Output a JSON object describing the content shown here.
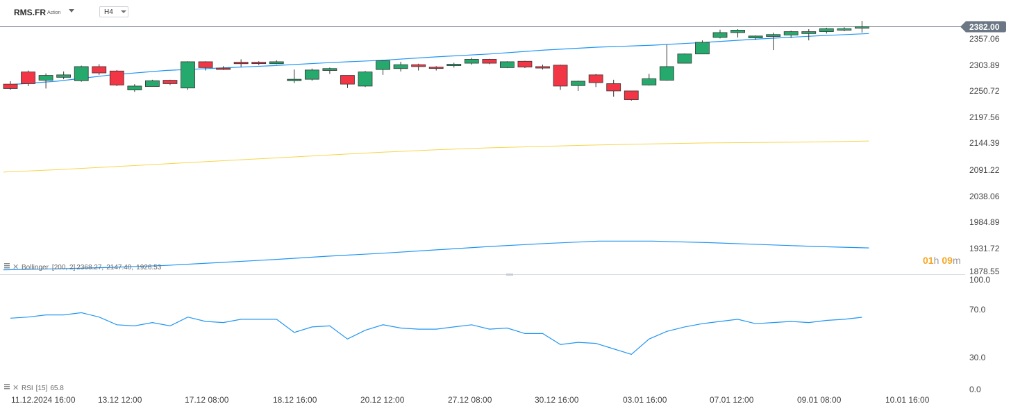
{
  "header": {
    "symbol": "RMS.FR",
    "instrument_type": "Action",
    "timeframe": "H4"
  },
  "price_axis": {
    "labels": [
      "2357.06",
      "2303.89",
      "2250.72",
      "2197.56",
      "2144.39",
      "2091.22",
      "2038.06",
      "1984.89",
      "1931.72",
      "1878.55"
    ],
    "current_price_label": "2382.00",
    "current_price": 2382.0
  },
  "countdown": {
    "hours": "01",
    "h_unit": "h",
    "minutes": "09",
    "m_unit": "m"
  },
  "bollinger_legend": {
    "name": "Bollinger",
    "params": "[200,  2]",
    "upper": "2368.27,",
    "middle": "2147.40,",
    "lower": "1926.53"
  },
  "rsi_axis": {
    "labels": [
      "100.0",
      "70.0",
      "30.0",
      "0.0"
    ]
  },
  "rsi_legend": {
    "name": "RSI",
    "params": "[15]",
    "value": "65.8"
  },
  "time_axis": {
    "labels": [
      "11.12.2024  16:00",
      "13.12  12:00",
      "17.12  08:00",
      "18.12  16:00",
      "20.12  12:00",
      "27.12  08:00",
      "30.12  16:00",
      "03.01  16:00",
      "07.01  12:00",
      "09.01  08:00",
      "10.01  16:00"
    ]
  },
  "colors": {
    "up": "#26a96c",
    "down": "#f23645",
    "bb_upper": "#2196f3",
    "bb_middle": "#f6d54a",
    "bb_lower": "#2196f3",
    "rsi": "#2196f3",
    "price_tag": "#6b7785",
    "countdown": "#f5a623"
  },
  "chart_data": [
    {
      "type": "candlestick",
      "title": "RMS.FR",
      "timeframe": "H4",
      "ylim": [
        1878.55,
        2410.0
      ],
      "candles": [
        {
          "o": 2264,
          "h": 2270,
          "l": 2252,
          "c": 2255
        },
        {
          "o": 2289,
          "h": 2292,
          "l": 2260,
          "c": 2265
        },
        {
          "o": 2272,
          "h": 2286,
          "l": 2255,
          "c": 2282
        },
        {
          "o": 2278,
          "h": 2290,
          "l": 2274,
          "c": 2283
        },
        {
          "o": 2271,
          "h": 2302,
          "l": 2269,
          "c": 2300
        },
        {
          "o": 2300,
          "h": 2305,
          "l": 2283,
          "c": 2287
        },
        {
          "o": 2291,
          "h": 2293,
          "l": 2260,
          "c": 2262
        },
        {
          "o": 2252,
          "h": 2264,
          "l": 2248,
          "c": 2260
        },
        {
          "o": 2259,
          "h": 2273,
          "l": 2259,
          "c": 2271
        },
        {
          "o": 2272,
          "h": 2273,
          "l": 2262,
          "c": 2265
        },
        {
          "o": 2256,
          "h": 2311,
          "l": 2252,
          "c": 2310
        },
        {
          "o": 2310,
          "h": 2311,
          "l": 2292,
          "c": 2298
        },
        {
          "o": 2297,
          "h": 2301,
          "l": 2293,
          "c": 2295
        },
        {
          "o": 2309,
          "h": 2315,
          "l": 2299,
          "c": 2306
        },
        {
          "o": 2309,
          "h": 2311,
          "l": 2303,
          "c": 2307
        },
        {
          "o": 2306,
          "h": 2313,
          "l": 2305,
          "c": 2310
        },
        {
          "o": 2271,
          "h": 2294,
          "l": 2266,
          "c": 2274
        },
        {
          "o": 2274,
          "h": 2296,
          "l": 2271,
          "c": 2293
        },
        {
          "o": 2292,
          "h": 2298,
          "l": 2285,
          "c": 2296
        },
        {
          "o": 2282,
          "h": 2282,
          "l": 2256,
          "c": 2264
        },
        {
          "o": 2260,
          "h": 2291,
          "l": 2258,
          "c": 2289
        },
        {
          "o": 2294,
          "h": 2313,
          "l": 2283,
          "c": 2312
        },
        {
          "o": 2296,
          "h": 2310,
          "l": 2290,
          "c": 2304
        },
        {
          "o": 2304,
          "h": 2306,
          "l": 2292,
          "c": 2300
        },
        {
          "o": 2299,
          "h": 2301,
          "l": 2292,
          "c": 2297
        },
        {
          "o": 2302,
          "h": 2308,
          "l": 2298,
          "c": 2305
        },
        {
          "o": 2307,
          "h": 2318,
          "l": 2304,
          "c": 2315
        },
        {
          "o": 2315,
          "h": 2316,
          "l": 2305,
          "c": 2307
        },
        {
          "o": 2298,
          "h": 2311,
          "l": 2297,
          "c": 2310
        },
        {
          "o": 2311,
          "h": 2312,
          "l": 2297,
          "c": 2299
        },
        {
          "o": 2300,
          "h": 2304,
          "l": 2294,
          "c": 2297
        },
        {
          "o": 2303,
          "h": 2304,
          "l": 2252,
          "c": 2260
        },
        {
          "o": 2261,
          "h": 2271,
          "l": 2250,
          "c": 2270
        },
        {
          "o": 2283,
          "h": 2285,
          "l": 2258,
          "c": 2267
        },
        {
          "o": 2265,
          "h": 2273,
          "l": 2238,
          "c": 2250
        },
        {
          "o": 2250,
          "h": 2250,
          "l": 2230,
          "c": 2232
        },
        {
          "o": 2262,
          "h": 2285,
          "l": 2261,
          "c": 2275
        },
        {
          "o": 2272,
          "h": 2345,
          "l": 2271,
          "c": 2300
        },
        {
          "o": 2307,
          "h": 2327,
          "l": 2307,
          "c": 2326
        },
        {
          "o": 2326,
          "h": 2354,
          "l": 2326,
          "c": 2350
        },
        {
          "o": 2360,
          "h": 2376,
          "l": 2358,
          "c": 2370
        },
        {
          "o": 2370,
          "h": 2377,
          "l": 2360,
          "c": 2375
        },
        {
          "o": 2359,
          "h": 2364,
          "l": 2355,
          "c": 2363
        },
        {
          "o": 2362,
          "h": 2370,
          "l": 2334,
          "c": 2366
        },
        {
          "o": 2365,
          "h": 2374,
          "l": 2359,
          "c": 2372
        },
        {
          "o": 2368,
          "h": 2377,
          "l": 2354,
          "c": 2372
        },
        {
          "o": 2372,
          "h": 2380,
          "l": 2368,
          "c": 2378
        },
        {
          "o": 2375,
          "h": 2381,
          "l": 2373,
          "c": 2378
        },
        {
          "o": 2379,
          "h": 2394,
          "l": 2370,
          "c": 2382
        }
      ],
      "bollinger": {
        "upper": [
          2262,
          2270,
          2283,
          2292,
          2297,
          2302,
          2308,
          2313,
          2320,
          2326,
          2334,
          2340,
          2344,
          2350,
          2357,
          2363,
          2368
        ],
        "middle": [
          2083,
          2088,
          2094,
          2100,
          2106,
          2112,
          2118,
          2124,
          2129,
          2133,
          2136,
          2139,
          2141,
          2143,
          2144,
          2145,
          2147
        ],
        "lower": [
          1882,
          1884,
          1887,
          1891,
          1897,
          1903,
          1910,
          1916,
          1923,
          1930,
          1936,
          1941,
          1941,
          1938,
          1934,
          1930,
          1927
        ]
      }
    },
    {
      "type": "line",
      "title": "RSI [15]",
      "ylim": [
        0,
        100
      ],
      "series": [
        {
          "name": "RSI",
          "values": [
            65,
            66,
            68,
            68,
            70,
            66,
            59,
            58,
            61,
            58,
            66,
            62,
            61,
            64,
            64,
            64,
            52,
            57,
            58,
            46,
            54,
            59,
            56,
            55,
            55,
            57,
            59,
            55,
            56,
            51,
            51,
            41,
            43,
            42,
            37,
            32,
            46,
            53,
            57,
            60,
            62,
            64,
            60,
            61,
            62,
            61,
            63,
            64,
            65.8
          ]
        }
      ]
    }
  ]
}
